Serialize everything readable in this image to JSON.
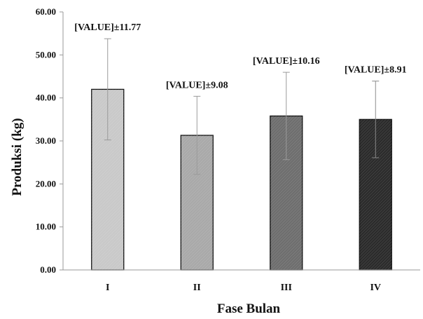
{
  "chart_data": {
    "type": "bar",
    "categories": [
      "I",
      "II",
      "III",
      "IV"
    ],
    "values": [
      42.0,
      31.3,
      35.8,
      35.0
    ],
    "errors": [
      11.77,
      9.08,
      10.16,
      8.91
    ],
    "data_labels": [
      "[VALUE]±11.77",
      "[VALUE]±9.08",
      "[VALUE]±10.16",
      "[VALUE]±8.91"
    ],
    "title": "",
    "xlabel": "Fase Bulan",
    "ylabel": "Produksi (kg)",
    "ylim": [
      0,
      60
    ],
    "yticks": [
      "0.00",
      "10.00",
      "20.00",
      "30.00",
      "40.00",
      "50.00",
      "60.00"
    ],
    "bar_colors": [
      "#c9c9c9",
      "#a9a9a9",
      "#6e6e6e",
      "#2b2b2b"
    ],
    "grid": false,
    "legend": "none"
  }
}
